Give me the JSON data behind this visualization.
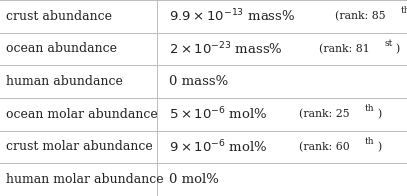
{
  "rows": [
    {
      "label": "crust abundance",
      "value_latex": "$9.9\\times10^{-13}$ mass%",
      "rank_text": "(rank: 85",
      "rank_super": "th",
      "rank_close": ")"
    },
    {
      "label": "ocean abundance",
      "value_latex": "$2\\times10^{-23}$ mass%",
      "rank_text": "(rank: 81",
      "rank_super": "st",
      "rank_close": ")"
    },
    {
      "label": "human abundance",
      "value_latex": "0 mass%",
      "rank_text": "",
      "rank_super": "",
      "rank_close": ""
    },
    {
      "label": "ocean molar abundance",
      "value_latex": "$5\\times10^{-6}$ mol%",
      "rank_text": "(rank: 25",
      "rank_super": "th",
      "rank_close": ")"
    },
    {
      "label": "crust molar abundance",
      "value_latex": "$9\\times10^{-6}$ mol%",
      "rank_text": "(rank: 60",
      "rank_super": "th",
      "rank_close": ")"
    },
    {
      "label": "human molar abundance",
      "value_latex": "0 mol%",
      "rank_text": "",
      "rank_super": "",
      "rank_close": ""
    }
  ],
  "col_split": 0.385,
  "background_color": "#ffffff",
  "border_color": "#bbbbbb",
  "text_color": "#222222",
  "label_fontsize": 9.0,
  "value_fontsize": 9.5,
  "small_fontsize": 7.8,
  "supersmall_fontsize": 6.5
}
